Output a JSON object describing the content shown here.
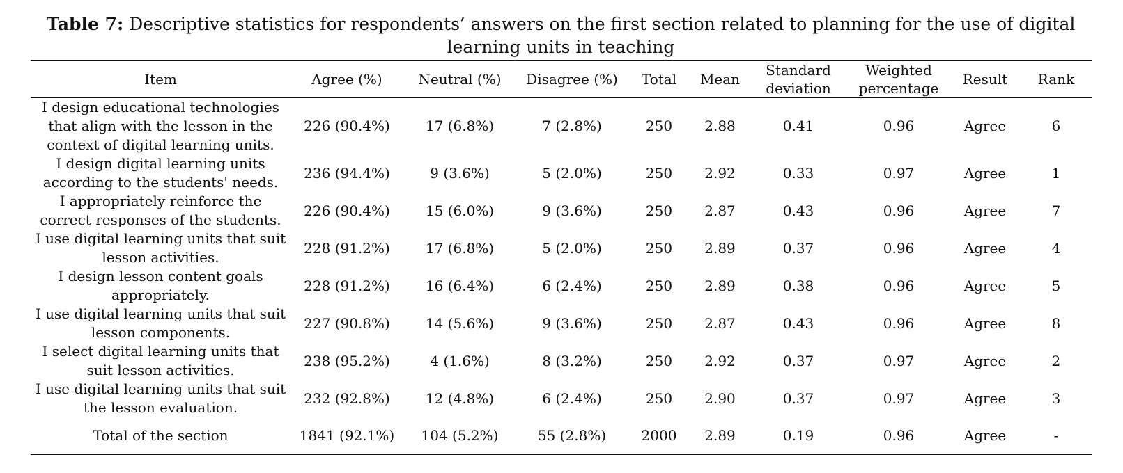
{
  "caption": {
    "label": "Table 7:",
    "text": "Descriptive statistics for respondents’ answers on the first section related to planning for the use of digital learning units in teaching"
  },
  "headers": {
    "item": "Item",
    "agree": "Agree (%)",
    "neutral": "Neutral (%)",
    "disagree": "Disagree (%)",
    "total": "Total",
    "mean": "Mean",
    "sd": "Standard deviation",
    "weighted": "Weighted percentage",
    "result": "Result",
    "rank": "Rank"
  },
  "rows": [
    {
      "item": "I design educational technologies that align with the lesson in the context of digital learning units.",
      "agree": "226 (90.4%)",
      "neutral": "17 (6.8%)",
      "disagree": "7 (2.8%)",
      "total": "250",
      "mean": "2.88",
      "sd": "0.41",
      "weighted": "0.96",
      "result": "Agree",
      "rank": "6"
    },
    {
      "item": "I design digital learning units according to the students' needs.",
      "agree": "236 (94.4%)",
      "neutral": "9 (3.6%)",
      "disagree": "5 (2.0%)",
      "total": "250",
      "mean": "2.92",
      "sd": "0.33",
      "weighted": "0.97",
      "result": "Agree",
      "rank": "1"
    },
    {
      "item": "I appropriately reinforce the correct responses of the students.",
      "agree": "226 (90.4%)",
      "neutral": "15 (6.0%)",
      "disagree": "9 (3.6%)",
      "total": "250",
      "mean": "2.87",
      "sd": "0.43",
      "weighted": "0.96",
      "result": "Agree",
      "rank": "7"
    },
    {
      "item": "I use digital learning units that suit lesson activities.",
      "agree": "228 (91.2%)",
      "neutral": "17 (6.8%)",
      "disagree": "5 (2.0%)",
      "total": "250",
      "mean": "2.89",
      "sd": "0.37",
      "weighted": "0.96",
      "result": "Agree",
      "rank": "4"
    },
    {
      "item": "I design lesson content goals appropriately.",
      "agree": "228 (91.2%)",
      "neutral": "16 (6.4%)",
      "disagree": "6 (2.4%)",
      "total": "250",
      "mean": "2.89",
      "sd": "0.38",
      "weighted": "0.96",
      "result": "Agree",
      "rank": "5"
    },
    {
      "item": "I use digital learning units that suit lesson components.",
      "agree": "227 (90.8%)",
      "neutral": "14 (5.6%)",
      "disagree": "9 (3.6%)",
      "total": "250",
      "mean": "2.87",
      "sd": "0.43",
      "weighted": "0.96",
      "result": "Agree",
      "rank": "8"
    },
    {
      "item": "I select digital learning units that suit lesson activities.",
      "agree": "238 (95.2%)",
      "neutral": "4 (1.6%)",
      "disagree": "8 (3.2%)",
      "total": "250",
      "mean": "2.92",
      "sd": "0.37",
      "weighted": "0.97",
      "result": "Agree",
      "rank": "2"
    },
    {
      "item": "I use digital learning units that suit the lesson evaluation.",
      "agree": "232 (92.8%)",
      "neutral": "12 (4.8%)",
      "disagree": "6 (2.4%)",
      "total": "250",
      "mean": "2.90",
      "sd": "0.37",
      "weighted": "0.97",
      "result": "Agree",
      "rank": "3"
    },
    {
      "item": "Total of the section",
      "agree": "1841 (92.1%)",
      "neutral": "104 (5.2%)",
      "disagree": "55 (2.8%)",
      "total": "2000",
      "mean": "2.89",
      "sd": "0.19",
      "weighted": "0.96",
      "result": "Agree",
      "rank": "-"
    }
  ]
}
